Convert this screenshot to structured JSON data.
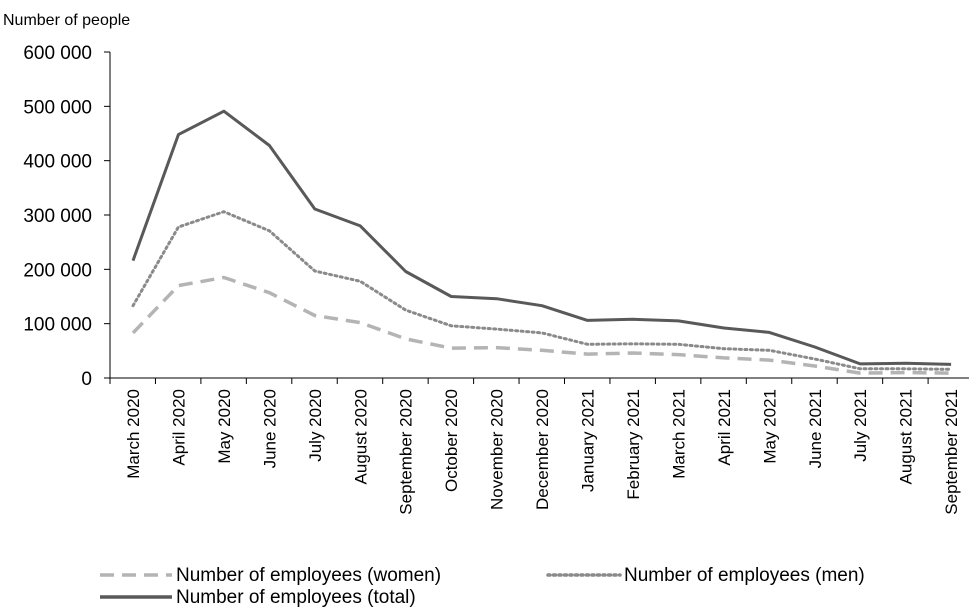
{
  "chart_data": {
    "type": "line",
    "title": "",
    "ylabel": "Number of people",
    "xlabel": "",
    "ylim": [
      0,
      600000
    ],
    "yticks": [
      0,
      100000,
      200000,
      300000,
      400000,
      500000,
      600000
    ],
    "ytick_labels": [
      "0",
      "100 000",
      "200 000",
      "300 000",
      "400 000",
      "500 000",
      "600 000"
    ],
    "grid": false,
    "legend_position": "bottom",
    "categories": [
      "March 2020",
      "April 2020",
      "May 2020",
      "June 2020",
      "July 2020",
      "August 2020",
      "September 2020",
      "October 2020",
      "November 2020",
      "December 2020",
      "January 2021",
      "February 2021",
      "March 2021",
      "April 2021",
      "May 2021",
      "June 2021",
      "July 2021",
      "August 2021",
      "September 2021"
    ],
    "series": [
      {
        "name": "Number of employees (women)",
        "style": "dashed",
        "color": "#b4b4b4",
        "values": [
          83000,
          170000,
          185000,
          157000,
          115000,
          102000,
          72000,
          55000,
          56000,
          51000,
          44000,
          46000,
          43000,
          37000,
          33000,
          22000,
          9000,
          10000,
          9000
        ]
      },
      {
        "name": "Number of employees (men)",
        "style": "dotted",
        "color": "#8a8a8a",
        "values": [
          133000,
          278000,
          306000,
          271000,
          197000,
          178000,
          125000,
          96000,
          90000,
          83000,
          62000,
          63000,
          62000,
          54000,
          51000,
          35000,
          17000,
          17000,
          16000
        ]
      },
      {
        "name": "Number of employees (total)",
        "style": "solid",
        "color": "#595959",
        "values": [
          216000,
          448000,
          491000,
          428000,
          311000,
          280000,
          196000,
          150000,
          146000,
          133000,
          106000,
          108000,
          105000,
          92000,
          84000,
          57000,
          26000,
          27000,
          25000
        ]
      }
    ]
  }
}
